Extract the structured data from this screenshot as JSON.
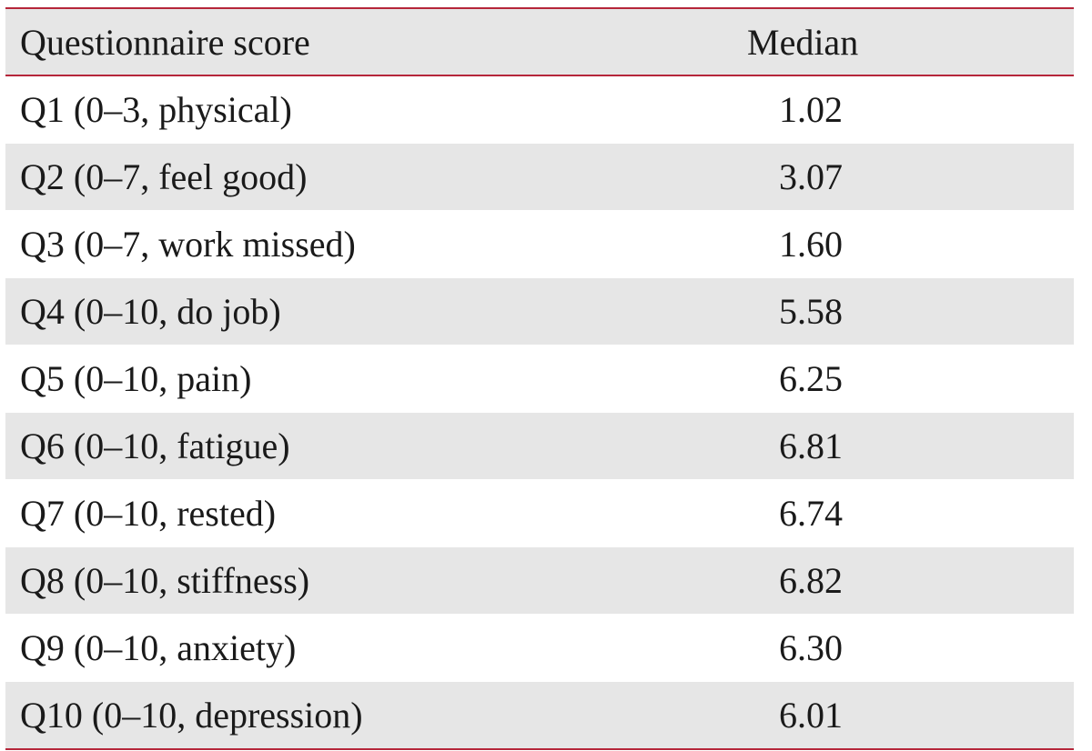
{
  "table": {
    "headers": {
      "score": "Questionnaire score",
      "median": "Median"
    },
    "rows": [
      {
        "score": "Q1 (0–3, physical)",
        "median": "1.02"
      },
      {
        "score": "Q2 (0–7, feel good)",
        "median": "3.07"
      },
      {
        "score": "Q3 (0–7, work missed)",
        "median": "1.60"
      },
      {
        "score": "Q4 (0–10, do job)",
        "median": "5.58"
      },
      {
        "score": "Q5 (0–10, pain)",
        "median": "6.25"
      },
      {
        "score": "Q6 (0–10, fatigue)",
        "median": "6.81"
      },
      {
        "score": "Q7 (0–10, rested)",
        "median": "6.74"
      },
      {
        "score": "Q8 (0–10, stiffness)",
        "median": "6.82"
      },
      {
        "score": "Q9 (0–10, anxiety)",
        "median": "6.30"
      },
      {
        "score": "Q10 (0–10, depression)",
        "median": "6.01"
      }
    ]
  },
  "colors": {
    "rule": "#b5263a",
    "stripe": "#e6e6e6",
    "text": "#1a1a1a"
  }
}
